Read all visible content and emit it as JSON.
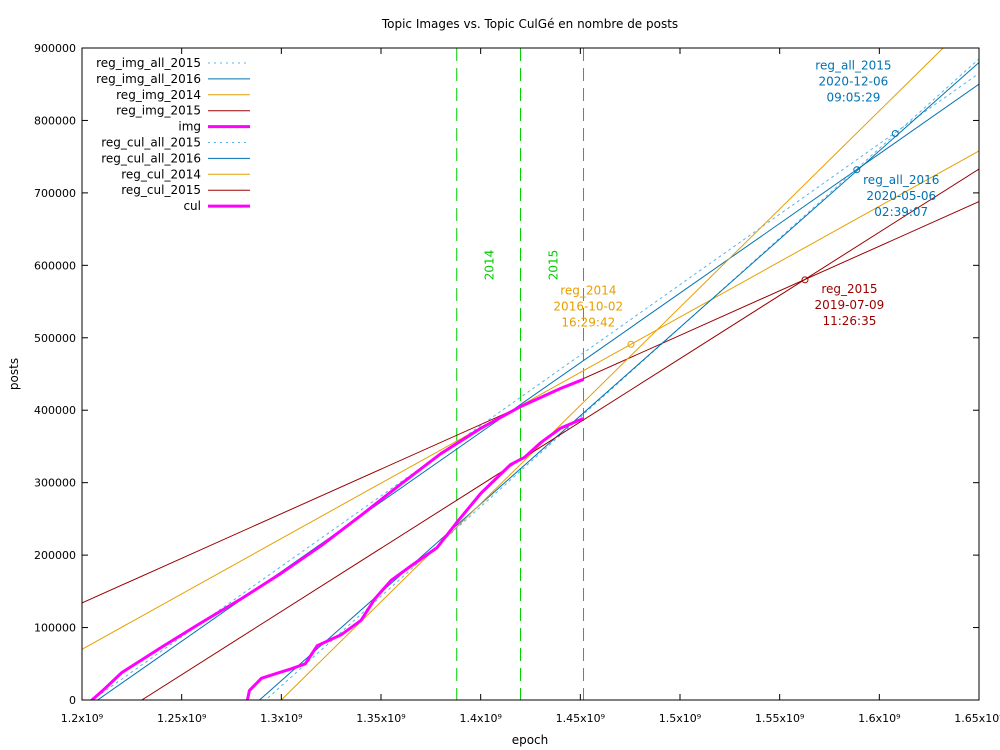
{
  "chart_data": {
    "type": "line",
    "title": "Topic Images vs. Topic CulGé en nombre de posts",
    "xlabel": "epoch",
    "ylabel": "posts",
    "xlim": [
      1200000000,
      1650000000
    ],
    "ylim": [
      0,
      900000
    ],
    "x_ticks": [
      {
        "value": 1200000000,
        "label": "1.2x10⁹"
      },
      {
        "value": 1250000000,
        "label": "1.25x10⁹"
      },
      {
        "value": 1300000000,
        "label": "1.3x10⁹"
      },
      {
        "value": 1350000000,
        "label": "1.35x10⁹"
      },
      {
        "value": 1400000000,
        "label": "1.4x10⁹"
      },
      {
        "value": 1450000000,
        "label": "1.45x10⁹"
      },
      {
        "value": 1500000000,
        "label": "1.5x10⁹"
      },
      {
        "value": 1550000000,
        "label": "1.55x10⁹"
      },
      {
        "value": 1600000000,
        "label": "1.6x10⁹"
      },
      {
        "value": 1650000000,
        "label": "1.65x10⁹"
      }
    ],
    "y_ticks": [
      {
        "value": 0,
        "label": "0"
      },
      {
        "value": 100000,
        "label": "100000"
      },
      {
        "value": 200000,
        "label": "200000"
      },
      {
        "value": 300000,
        "label": "300000"
      },
      {
        "value": 400000,
        "label": "400000"
      },
      {
        "value": 500000,
        "label": "500000"
      },
      {
        "value": 600000,
        "label": "600000"
      },
      {
        "value": 700000,
        "label": "700000"
      },
      {
        "value": 800000,
        "label": "800000"
      },
      {
        "value": 900000,
        "label": "900000"
      }
    ],
    "grid": false,
    "legend_position": "top-left",
    "series": [
      {
        "name": "reg_img_all_2015",
        "kind": "line",
        "color": "#56b4e9",
        "dash": "dotted",
        "width": 1,
        "x": [
          1200000000,
          1650000000
        ],
        "y": [
          -10000,
          865000
        ]
      },
      {
        "name": "reg_img_all_2016",
        "kind": "line",
        "color": "#0072b2",
        "dash": "solid",
        "width": 1,
        "x": [
          1200000000,
          1650000000
        ],
        "y": [
          -15000,
          850000
        ]
      },
      {
        "name": "reg_img_2014",
        "kind": "line",
        "color": "#e69f00",
        "dash": "solid",
        "width": 1,
        "x": [
          1200000000,
          1650000000
        ],
        "y": [
          70000,
          758000
        ]
      },
      {
        "name": "reg_img_2015",
        "kind": "line",
        "color": "#9b0000",
        "dash": "solid",
        "width": 1,
        "x": [
          1200000000,
          1650000000
        ],
        "y": [
          134000,
          688000
        ]
      },
      {
        "name": "img",
        "kind": "data",
        "color": "#ff00ff",
        "dash": "solid",
        "width": 3,
        "x": [
          1205000000,
          1210000000,
          1220000000,
          1240000000,
          1260000000,
          1280000000,
          1300000000,
          1320000000,
          1340000000,
          1360000000,
          1380000000,
          1400000000,
          1420000000,
          1440000000,
          1451000000
        ],
        "y": [
          0,
          12000,
          38000,
          73000,
          107000,
          140000,
          175000,
          213000,
          255000,
          298000,
          340000,
          375000,
          405000,
          430000,
          442000
        ]
      },
      {
        "name": "reg_cul_all_2015",
        "kind": "line",
        "color": "#56b4e9",
        "dash": "dotted",
        "width": 1,
        "x": [
          1280000000,
          1650000000
        ],
        "y": [
          -30000,
          885000
        ]
      },
      {
        "name": "reg_cul_all_2016",
        "kind": "line",
        "color": "#0072b2",
        "dash": "solid",
        "width": 1,
        "x": [
          1285000000,
          1650000000
        ],
        "y": [
          -10000,
          880000
        ]
      },
      {
        "name": "reg_cul_2014",
        "kind": "line",
        "color": "#e69f00",
        "dash": "solid",
        "width": 1,
        "x": [
          1300000000,
          1632000000
        ],
        "y": [
          0,
          900000
        ]
      },
      {
        "name": "reg_cul_2015",
        "kind": "line",
        "color": "#9b0000",
        "dash": "solid",
        "width": 1,
        "x": [
          1230000000,
          1650000000
        ],
        "y": [
          0,
          733000
        ]
      },
      {
        "name": "cul",
        "kind": "data",
        "color": "#ff00ff",
        "dash": "solid",
        "width": 3,
        "x": [
          1283000000,
          1284000000,
          1290000000,
          1298000000,
          1305000000,
          1312000000,
          1318000000,
          1330000000,
          1340000000,
          1347000000,
          1355000000,
          1365000000,
          1378000000,
          1388000000,
          1400000000,
          1415000000,
          1422000000,
          1430000000,
          1440000000,
          1451000000
        ],
        "y": [
          0,
          13000,
          30000,
          37000,
          43000,
          50000,
          75000,
          90000,
          110000,
          140000,
          165000,
          185000,
          210000,
          245000,
          285000,
          325000,
          335000,
          355000,
          375000,
          388000
        ]
      }
    ],
    "vertical_markers": [
      {
        "x": 1388000000,
        "label": "2014",
        "color": "#00cc00"
      },
      {
        "x": 1420000000,
        "label": "2015",
        "color": "#00cc00"
      },
      {
        "x": 1451600000,
        "label": "",
        "color": "#00cc00"
      }
    ],
    "annotations": [
      {
        "x": 1608000000,
        "y": 782000,
        "lines": [
          "reg_all_2015",
          "2020-12-06",
          "09:05:29"
        ],
        "color": "#0072b2",
        "text_at": [
          1587000000,
          870000
        ]
      },
      {
        "x": 1588700000,
        "y": 732000,
        "lines": [
          "reg_all_2016",
          "2020-05-06",
          "02:39:07"
        ],
        "color": "#0072b2",
        "text_at": [
          1611000000,
          712000
        ]
      },
      {
        "x": 1475400000,
        "y": 491000,
        "lines": [
          "reg_2014",
          "2016-10-02",
          "16:29:42"
        ],
        "color": "#e69f00",
        "text_at": [
          1454000000,
          560000
        ]
      },
      {
        "x": 1562700000,
        "y": 580000,
        "lines": [
          "reg_2015",
          "2019-07-09",
          "11:26:35"
        ],
        "color": "#9b0000",
        "text_at": [
          1585000000,
          562000
        ]
      }
    ]
  }
}
